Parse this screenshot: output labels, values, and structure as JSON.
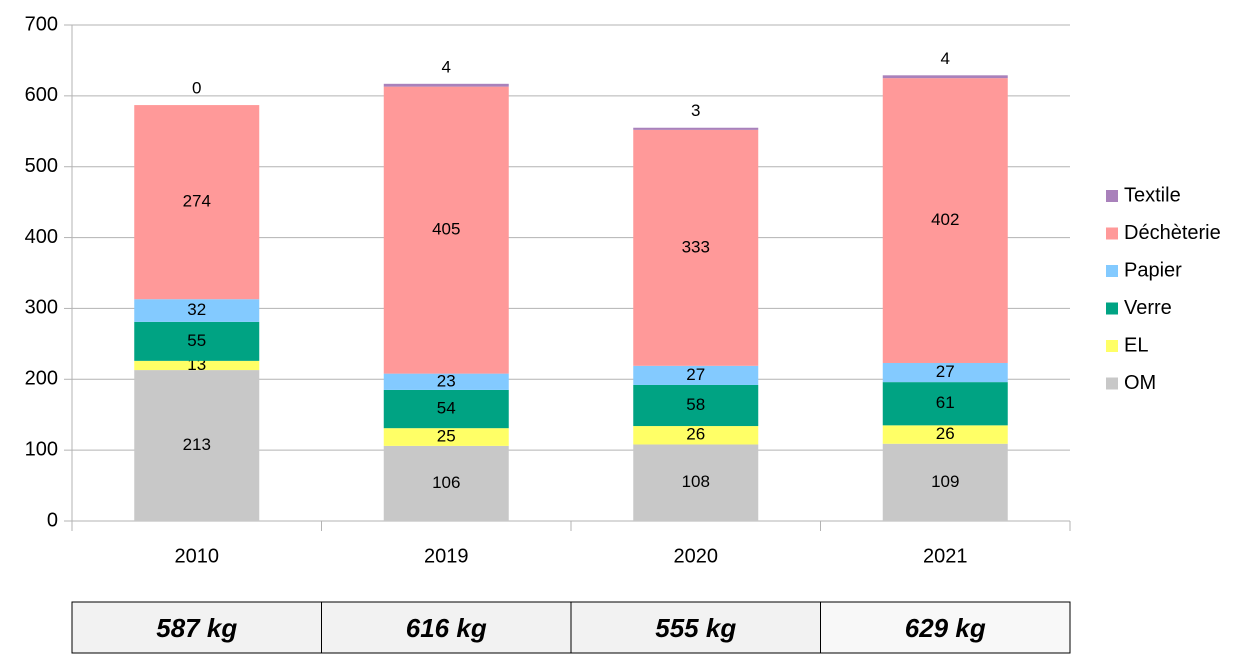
{
  "chart_data": {
    "type": "stacked_bar",
    "categories": [
      "2010",
      "2019",
      "2020",
      "2021"
    ],
    "series": [
      {
        "name": "OM",
        "color": "#c8c8c8",
        "values": [
          213,
          106,
          108,
          109
        ]
      },
      {
        "name": "EL",
        "color": "#ffff66",
        "values": [
          13,
          25,
          26,
          26
        ]
      },
      {
        "name": "Verre",
        "color": "#00a383",
        "values": [
          55,
          54,
          58,
          61
        ]
      },
      {
        "name": "Papier",
        "color": "#83caff",
        "values": [
          32,
          23,
          27,
          27
        ]
      },
      {
        "name": "Déchèterie",
        "color": "#ff9999",
        "values": [
          274,
          405,
          333,
          402
        ]
      },
      {
        "name": "Textile",
        "color": "#a981bb",
        "values": [
          0,
          4,
          3,
          4
        ]
      }
    ],
    "ylim": [
      0,
      700
    ],
    "yticks": [
      0,
      100,
      200,
      300,
      400,
      500,
      600,
      700
    ],
    "grid": true,
    "legend": "right"
  },
  "table": {
    "cells": [
      "587 kg",
      "616 kg",
      "555 kg",
      "629 kg"
    ]
  }
}
